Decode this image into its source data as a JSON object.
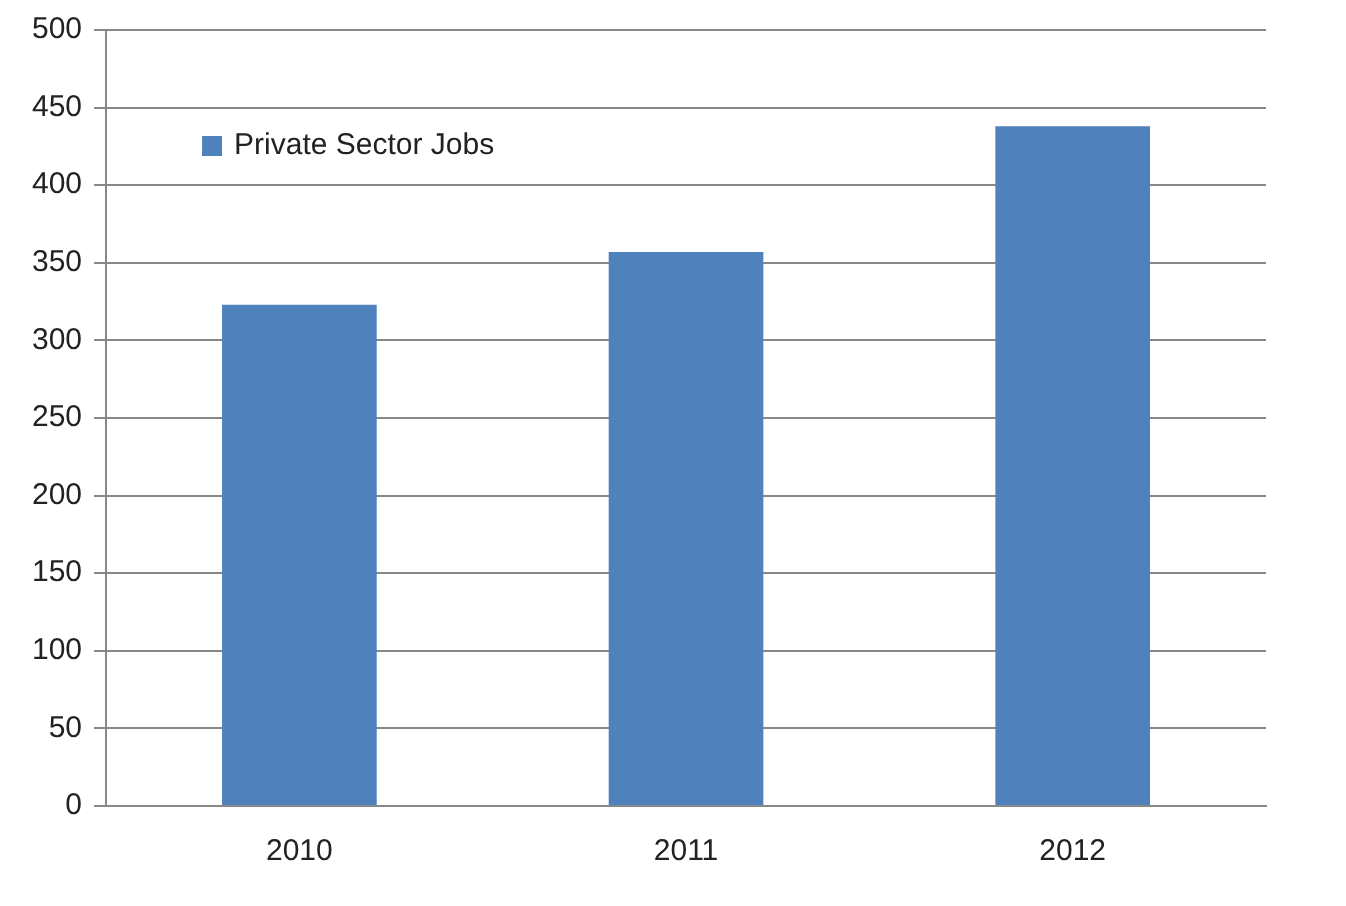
{
  "chart_data": {
    "type": "bar",
    "categories": [
      "2010",
      "2011",
      "2012"
    ],
    "series": [
      {
        "name": "Private Sector Jobs",
        "color": "#4f81bd",
        "values": [
          323,
          357,
          438
        ]
      }
    ],
    "ylim": [
      0,
      500
    ],
    "yticks": [
      0,
      50,
      100,
      150,
      200,
      250,
      300,
      350,
      400,
      450,
      500
    ],
    "grid": "y",
    "legend": "top left"
  }
}
